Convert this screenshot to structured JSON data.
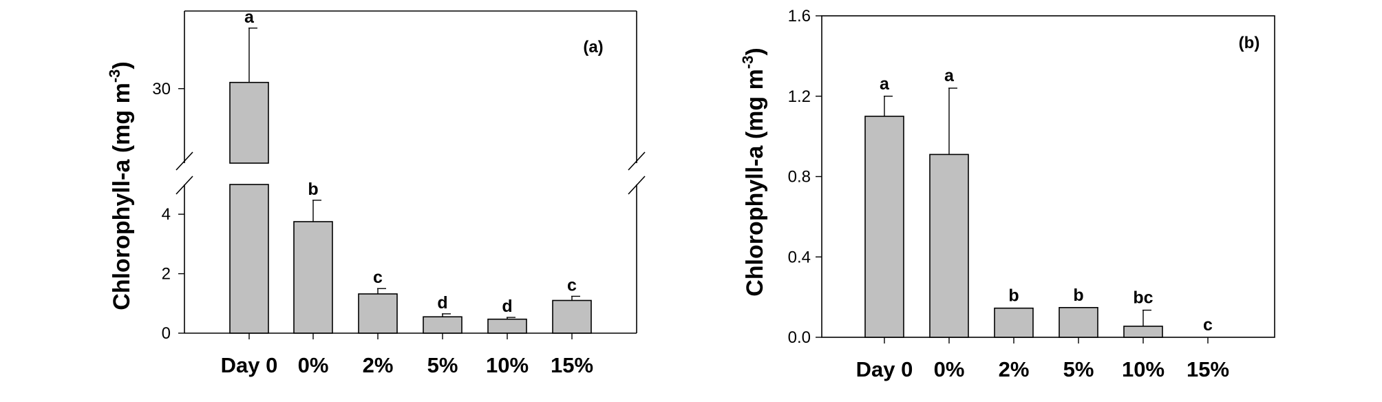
{
  "chart_data": [
    {
      "type": "bar",
      "panel_label": "(a)",
      "ylabel": "Chlorophyll-a (mg m",
      "ylabel_superscript": "-3",
      "categories": [
        "Day 0",
        "0%",
        "2%",
        "5%",
        "10%",
        "15%"
      ],
      "values": [
        30.4,
        3.75,
        1.32,
        0.55,
        0.47,
        1.1
      ],
      "error": [
        3.5,
        0.72,
        0.18,
        0.1,
        0.06,
        0.14
      ],
      "significance": [
        "a",
        "b",
        "c",
        "d",
        "d",
        "c"
      ],
      "axis_break": {
        "lower_max": 5,
        "upper_min": 25.2
      },
      "y_ticks": [
        "0",
        "2",
        "4",
        "30"
      ],
      "ylim_lower": [
        0,
        5
      ],
      "ylim_upper": [
        25.2,
        35
      ]
    },
    {
      "type": "bar",
      "panel_label": "(b)",
      "ylabel": "Chlorophyll-a (mg m",
      "ylabel_superscript": "-3",
      "categories": [
        "Day 0",
        "0%",
        "2%",
        "5%",
        "10%",
        "15%"
      ],
      "values": [
        1.1,
        0.91,
        0.145,
        0.148,
        0.055,
        0.0
      ],
      "error": [
        0.1,
        0.33,
        0.0,
        0.0,
        0.08,
        0.0
      ],
      "significance": [
        "a",
        "a",
        "b",
        "b",
        "bc",
        "c"
      ],
      "y_ticks": [
        "0.0",
        "0.4",
        "0.8",
        "1.2",
        "1.6"
      ],
      "ylim": [
        0,
        1.6
      ]
    }
  ]
}
